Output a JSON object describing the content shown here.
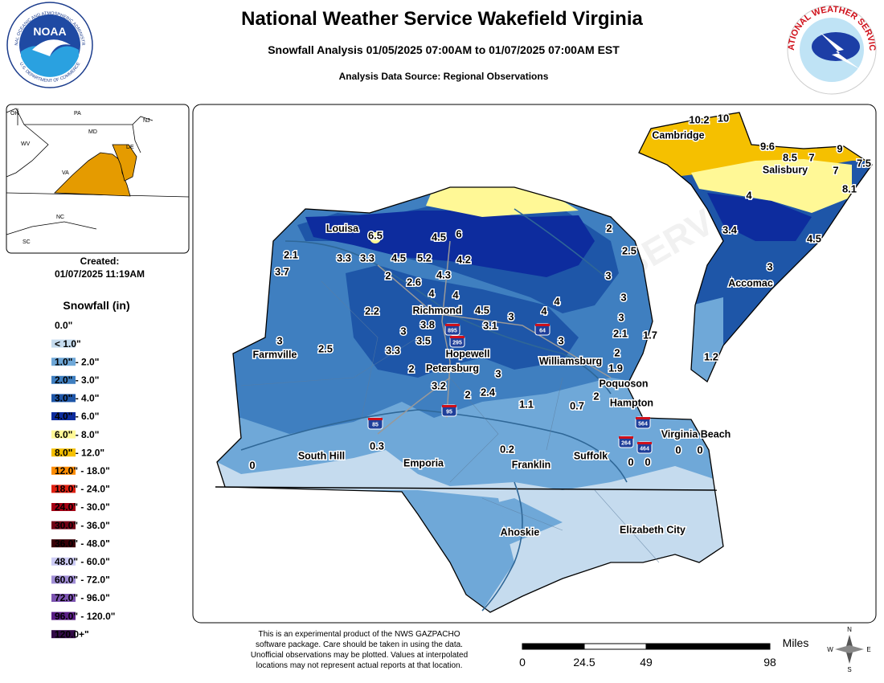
{
  "header": {
    "title": "National Weather Service Wakefield Virginia",
    "subtitle": "Snowfall Analysis 01/05/2025 07:00AM to 01/07/2025 07:00AM EST",
    "source": "Analysis Data Source: Regional Observations"
  },
  "logos": {
    "noaa": "NOAA",
    "noaa_ring": "NATIONAL OCEANIC AND ATMOSPHERIC ADMINISTRATION",
    "noaa_bottom": "U.S. DEPARTMENT OF COMMERCE",
    "nws": "NATIONAL WEATHER SERVICE"
  },
  "inset": {
    "states": [
      "OH",
      "PA",
      "NJ",
      "MD",
      "DE",
      "WV",
      "VA",
      "NC",
      "SC"
    ]
  },
  "created": {
    "label": "Created:",
    "datetime": "01/07/2025 11:19AM"
  },
  "legend": {
    "title": "Snowfall (in)",
    "items": [
      {
        "label": "0.0\"",
        "color": "#ffffff"
      },
      {
        "label": "< 1.0\"",
        "color": "#c5dbee"
      },
      {
        "label": "1.0\" - 2.0\"",
        "color": "#6fa8d8"
      },
      {
        "label": "2.0\" - 3.0\"",
        "color": "#3f7fc0"
      },
      {
        "label": "3.0\" - 4.0\"",
        "color": "#1e56a8"
      },
      {
        "label": "4.0\" - 6.0\"",
        "color": "#0d2c9e"
      },
      {
        "label": "6.0\" - 8.0\"",
        "color": "#fff896"
      },
      {
        "label": "8.0\" - 12.0\"",
        "color": "#f5c000"
      },
      {
        "label": "12.0\" - 18.0\"",
        "color": "#fd8c00"
      },
      {
        "label": "18.0\" - 24.0\"",
        "color": "#e01f10"
      },
      {
        "label": "24.0\" - 30.0\"",
        "color": "#a50014"
      },
      {
        "label": "30.0\" - 36.0\"",
        "color": "#720015"
      },
      {
        "label": "36.0\" - 48.0\"",
        "color": "#3a0008"
      },
      {
        "label": "48.0\" - 60.0\"",
        "color": "#cccbf5"
      },
      {
        "label": "60.0\" - 72.0\"",
        "color": "#a08dd6"
      },
      {
        "label": "72.0\" - 96.0\"",
        "color": "#7c53b1"
      },
      {
        "label": "96.0\" - 120.0\"",
        "color": "#5a1f86"
      },
      {
        "label": "120.0+\"",
        "color": "#330a48"
      }
    ]
  },
  "cities": [
    "Cambridge",
    "Salisbury",
    "Accomac",
    "Louisa",
    "Richmond",
    "Farmville",
    "Hopewell",
    "Petersburg",
    "Williamsburg",
    "Poquoson",
    "Hampton",
    "Virginia Beach",
    "South Hill",
    "Emporia",
    "Franklin",
    "Suffolk",
    "Ahoskie",
    "Elizabeth City"
  ],
  "interstates": [
    895,
    295,
    64,
    85,
    95,
    564,
    264,
    464
  ],
  "observations": [
    10.2,
    10,
    9.6,
    8.5,
    7,
    9,
    7,
    7.5,
    8.1,
    4,
    3.4,
    4.5,
    3,
    1.2,
    6.5,
    4.5,
    6,
    2,
    2.1,
    3.3,
    3.3,
    4.5,
    5.2,
    4.2,
    2.5,
    3.7,
    2,
    2.6,
    4.3,
    3,
    4,
    4,
    3,
    4,
    2.2,
    4.5,
    4,
    3,
    3,
    3.8,
    3.1,
    3,
    3.5,
    2.1,
    1.7,
    3,
    2.5,
    3.3,
    3,
    2,
    2,
    3,
    1.9,
    3.2,
    2,
    2.4,
    2,
    1.1,
    0.7,
    0.3,
    0.2,
    0,
    0,
    0,
    0,
    0
  ],
  "disclaimer": [
    "This is an experimental product of the NWS GAZPACHO",
    "software package. Care should be taken in using the data.",
    "Unofficial observations may be plotted. Values at interpolated",
    "locations may not represent actual reports at that location."
  ],
  "scale": {
    "unit": "Miles",
    "ticks": [
      0,
      24.5,
      49,
      98
    ]
  },
  "compass": [
    "N",
    "E",
    "S",
    "W"
  ]
}
